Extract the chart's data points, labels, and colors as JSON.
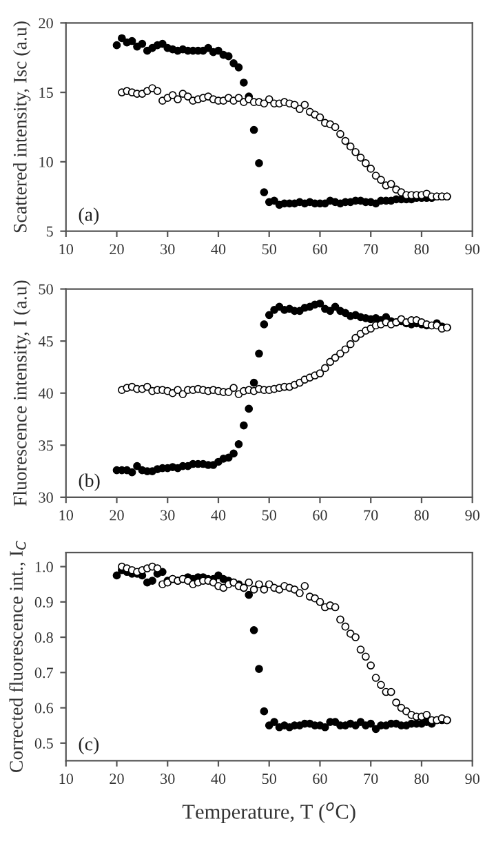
{
  "chart_data": [
    {
      "type": "scatter",
      "ylabel": "Scattered intensity, Isc (a.u)",
      "annotations": [
        "(a)"
      ],
      "xlim": [
        10,
        90
      ],
      "xticks": [
        10,
        20,
        30,
        40,
        50,
        60,
        70,
        80,
        90
      ],
      "ylim": [
        5,
        20
      ],
      "yticks": [
        5,
        10,
        15,
        20
      ],
      "marker": "circle",
      "grid": false,
      "series": [
        {
          "color": "#000000",
          "x": [
            20,
            21,
            22,
            23,
            24,
            25,
            26,
            27,
            28,
            29,
            30,
            31,
            32,
            33,
            34,
            35,
            36,
            37,
            38,
            39,
            40,
            41,
            42,
            43,
            44,
            45,
            46,
            47,
            48,
            49,
            50,
            51,
            52,
            53,
            54,
            55,
            56,
            57,
            58,
            59,
            60,
            61,
            62,
            63,
            64,
            65,
            66,
            67,
            68,
            69,
            70,
            71,
            72,
            73,
            74,
            75,
            76,
            77,
            78,
            79,
            80,
            81,
            82,
            83,
            84,
            85
          ],
          "values": [
            18.4,
            18.9,
            18.6,
            18.7,
            18.3,
            18.5,
            18.0,
            18.2,
            18.4,
            18.5,
            18.2,
            18.1,
            18.0,
            18.1,
            18.0,
            18.0,
            18.0,
            18.0,
            18.2,
            17.9,
            18.0,
            17.7,
            17.6,
            17.1,
            16.8,
            15.7,
            14.7,
            12.3,
            9.9,
            7.8,
            7.1,
            7.2,
            6.9,
            7.0,
            7.0,
            7.0,
            7.1,
            7.0,
            7.1,
            7.0,
            7.0,
            7.0,
            7.2,
            7.1,
            7.0,
            7.1,
            7.1,
            7.2,
            7.2,
            7.1,
            7.1,
            7.0,
            7.2,
            7.2,
            7.2,
            7.3,
            7.3,
            7.3,
            7.3,
            7.4,
            7.4,
            7.4,
            7.4,
            7.5,
            7.5,
            7.5
          ]
        },
        {
          "color": "#ffffff",
          "x": [
            21,
            22,
            23,
            24,
            25,
            26,
            27,
            28,
            29,
            30,
            31,
            32,
            33,
            34,
            35,
            36,
            37,
            38,
            39,
            40,
            41,
            42,
            43,
            44,
            45,
            46,
            47,
            48,
            49,
            50,
            51,
            52,
            53,
            54,
            55,
            56,
            57,
            58,
            59,
            60,
            61,
            62,
            63,
            64,
            65,
            66,
            67,
            68,
            69,
            70,
            71,
            72,
            73,
            74,
            75,
            76,
            77,
            78,
            79,
            80,
            81,
            82,
            83,
            84,
            85
          ],
          "values": [
            15.0,
            15.1,
            15.0,
            14.9,
            14.9,
            15.1,
            15.3,
            15.1,
            14.4,
            14.6,
            14.8,
            14.5,
            14.9,
            14.7,
            14.4,
            14.5,
            14.6,
            14.7,
            14.5,
            14.4,
            14.4,
            14.6,
            14.4,
            14.6,
            14.3,
            14.5,
            14.3,
            14.3,
            14.2,
            14.5,
            14.2,
            14.2,
            14.3,
            14.2,
            14.1,
            13.8,
            14.1,
            13.6,
            13.4,
            13.2,
            12.8,
            12.7,
            12.5,
            12.0,
            11.5,
            11.1,
            10.7,
            10.3,
            9.9,
            9.5,
            9.0,
            8.7,
            8.3,
            8.4,
            8.0,
            7.8,
            7.6,
            7.6,
            7.6,
            7.6,
            7.7,
            7.5,
            7.5,
            7.5,
            7.5
          ]
        }
      ]
    },
    {
      "type": "scatter",
      "ylabel": "Fluorescence intensity, I (a.u)",
      "annotations": [
        "(b)"
      ],
      "xlim": [
        10,
        90
      ],
      "xticks": [
        10,
        20,
        30,
        40,
        50,
        60,
        70,
        80,
        90
      ],
      "ylim": [
        30,
        50
      ],
      "yticks": [
        30,
        35,
        40,
        45,
        50
      ],
      "marker": "circle",
      "grid": false,
      "series": [
        {
          "color": "#000000",
          "x": [
            20,
            21,
            22,
            23,
            24,
            25,
            26,
            27,
            28,
            29,
            30,
            31,
            32,
            33,
            34,
            35,
            36,
            37,
            38,
            39,
            40,
            41,
            42,
            43,
            44,
            45,
            46,
            47,
            48,
            49,
            50,
            51,
            52,
            53,
            54,
            55,
            56,
            57,
            58,
            59,
            60,
            61,
            62,
            63,
            64,
            65,
            66,
            67,
            68,
            69,
            70,
            71,
            72,
            73,
            74,
            75,
            76,
            77,
            78,
            79,
            80,
            81,
            82,
            83,
            84,
            85
          ],
          "values": [
            32.6,
            32.6,
            32.6,
            32.4,
            33.0,
            32.6,
            32.5,
            32.5,
            32.7,
            32.8,
            32.8,
            32.9,
            32.8,
            33.0,
            33.0,
            33.2,
            33.2,
            33.2,
            33.1,
            33.1,
            33.4,
            33.7,
            33.8,
            34.2,
            35.1,
            36.9,
            38.5,
            41.0,
            43.8,
            46.6,
            47.5,
            48.0,
            48.3,
            48.0,
            48.1,
            47.9,
            47.9,
            48.2,
            48.3,
            48.5,
            48.6,
            48.1,
            47.9,
            48.3,
            47.9,
            47.7,
            47.4,
            47.5,
            47.3,
            47.2,
            47.1,
            47.2,
            47.0,
            47.3,
            46.9,
            46.8,
            46.9,
            46.7,
            46.6,
            46.7,
            46.6,
            46.5,
            46.5,
            46.7,
            46.4,
            46.3
          ]
        },
        {
          "color": "#ffffff",
          "x": [
            21,
            22,
            23,
            24,
            25,
            26,
            27,
            28,
            29,
            30,
            31,
            32,
            33,
            34,
            35,
            36,
            37,
            38,
            39,
            40,
            41,
            42,
            43,
            44,
            45,
            46,
            47,
            48,
            49,
            50,
            51,
            52,
            53,
            54,
            55,
            56,
            57,
            58,
            59,
            60,
            61,
            62,
            63,
            64,
            65,
            66,
            67,
            68,
            69,
            70,
            71,
            72,
            73,
            74,
            75,
            76,
            77,
            78,
            79,
            80,
            81,
            82,
            83,
            84,
            85
          ],
          "values": [
            40.3,
            40.5,
            40.6,
            40.4,
            40.4,
            40.6,
            40.2,
            40.3,
            40.3,
            40.2,
            40.0,
            40.3,
            39.9,
            40.3,
            40.3,
            40.4,
            40.3,
            40.2,
            40.3,
            40.2,
            40.1,
            40.1,
            40.5,
            39.9,
            40.2,
            40.3,
            40.2,
            40.4,
            40.3,
            40.3,
            40.4,
            40.5,
            40.6,
            40.6,
            40.8,
            41.0,
            41.3,
            41.5,
            41.7,
            41.9,
            42.4,
            43.0,
            43.4,
            43.8,
            44.2,
            44.7,
            45.3,
            45.7,
            46.0,
            46.2,
            46.5,
            46.6,
            46.8,
            46.6,
            46.8,
            47.1,
            46.8,
            47.0,
            47.0,
            46.8,
            46.6,
            46.5,
            46.5,
            46.2,
            46.3
          ]
        }
      ]
    },
    {
      "type": "scatter",
      "xlabel": "Temperature, T ($^{o}$C)",
      "ylabel": "Corrected fluorescence int., I$_{C}$",
      "annotations": [
        "(c)"
      ],
      "xlim": [
        10,
        90
      ],
      "xticks": [
        10,
        20,
        30,
        40,
        50,
        60,
        70,
        80,
        90
      ],
      "ylim": [
        0.45,
        1.04
      ],
      "yticks": [
        {
          "value": 0.5,
          "label": "0.5"
        },
        {
          "value": 0.6,
          "label": "0.6"
        },
        {
          "value": 0.7,
          "label": "0.7"
        },
        {
          "value": 0.8,
          "label": "0.8"
        },
        {
          "value": 0.9,
          "label": "0.9"
        },
        {
          "value": 1.0,
          "label": "1.0"
        }
      ],
      "marker": "circle",
      "grid": false,
      "series": [
        {
          "color": "#000000",
          "x": [
            20,
            21,
            22,
            23,
            24,
            25,
            26,
            27,
            28,
            29,
            30,
            31,
            32,
            33,
            34,
            35,
            36,
            37,
            38,
            39,
            40,
            41,
            42,
            43,
            44,
            45,
            46,
            47,
            48,
            49,
            50,
            51,
            52,
            53,
            54,
            55,
            56,
            57,
            58,
            59,
            60,
            61,
            62,
            63,
            64,
            65,
            66,
            67,
            68,
            69,
            70,
            71,
            72,
            73,
            74,
            75,
            76,
            77,
            78,
            79,
            80,
            81,
            82,
            83,
            84,
            85
          ],
          "values": [
            0.975,
            0.99,
            0.985,
            0.98,
            0.98,
            0.975,
            0.955,
            0.96,
            0.98,
            0.985,
            0.96,
            0.965,
            0.96,
            0.965,
            0.97,
            0.965,
            0.97,
            0.97,
            0.965,
            0.965,
            0.975,
            0.965,
            0.96,
            0.955,
            0.95,
            0.94,
            0.92,
            0.82,
            0.71,
            0.59,
            0.55,
            0.56,
            0.545,
            0.55,
            0.545,
            0.55,
            0.55,
            0.555,
            0.555,
            0.55,
            0.55,
            0.545,
            0.56,
            0.56,
            0.55,
            0.55,
            0.555,
            0.55,
            0.56,
            0.55,
            0.555,
            0.54,
            0.55,
            0.55,
            0.555,
            0.555,
            0.55,
            0.55,
            0.555,
            0.555,
            0.555,
            0.56,
            0.555,
            0.565,
            0.565,
            0.565
          ]
        },
        {
          "color": "#ffffff",
          "x": [
            21,
            22,
            23,
            24,
            25,
            26,
            27,
            28,
            29,
            30,
            31,
            32,
            33,
            34,
            35,
            36,
            37,
            38,
            39,
            40,
            41,
            42,
            43,
            44,
            45,
            46,
            47,
            48,
            49,
            50,
            51,
            52,
            53,
            54,
            55,
            56,
            57,
            58,
            59,
            60,
            61,
            62,
            63,
            64,
            65,
            66,
            67,
            68,
            69,
            70,
            71,
            72,
            73,
            74,
            75,
            76,
            77,
            78,
            79,
            80,
            81,
            82,
            83,
            84,
            85
          ],
          "values": [
            1.0,
            0.995,
            0.99,
            0.985,
            0.99,
            0.995,
            1.0,
            0.995,
            0.95,
            0.955,
            0.965,
            0.96,
            0.965,
            0.96,
            0.95,
            0.955,
            0.96,
            0.96,
            0.955,
            0.945,
            0.94,
            0.95,
            0.955,
            0.945,
            0.94,
            0.955,
            0.935,
            0.95,
            0.935,
            0.95,
            0.94,
            0.935,
            0.945,
            0.94,
            0.935,
            0.925,
            0.945,
            0.915,
            0.91,
            0.9,
            0.885,
            0.89,
            0.885,
            0.85,
            0.83,
            0.81,
            0.8,
            0.765,
            0.745,
            0.72,
            0.685,
            0.665,
            0.645,
            0.645,
            0.615,
            0.6,
            0.59,
            0.58,
            0.575,
            0.575,
            0.58,
            0.565,
            0.565,
            0.57,
            0.565
          ]
        }
      ]
    }
  ]
}
